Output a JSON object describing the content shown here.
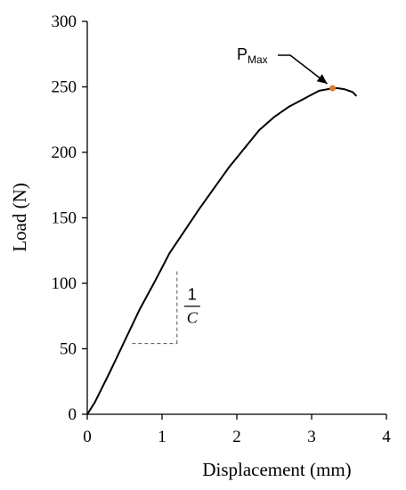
{
  "chart_data": {
    "type": "line",
    "title": "",
    "xlabel": "Displacement (mm)",
    "ylabel": "Load (N)",
    "xlim": [
      0,
      4
    ],
    "ylim": [
      0,
      300
    ],
    "x_ticks": [
      0,
      1,
      2,
      3,
      4
    ],
    "y_ticks": [
      0,
      50,
      100,
      150,
      200,
      250,
      300
    ],
    "grid": false,
    "series": [
      {
        "x": [
          0,
          0.1,
          0.3,
          0.5,
          0.7,
          0.9,
          1.1,
          1.3,
          1.5,
          1.7,
          1.9,
          2.1,
          2.3,
          2.5,
          2.7,
          2.9,
          3.0,
          3.1,
          3.2,
          3.28,
          3.35,
          3.45,
          3.55,
          3.6
        ],
        "y": [
          0,
          9,
          32,
          56,
          80,
          101,
          123,
          140,
          157,
          173,
          189,
          203,
          217,
          227,
          235,
          241,
          244,
          247,
          248,
          249,
          249,
          248,
          246,
          243
        ]
      }
    ],
    "annotations": {
      "peak_label": "P",
      "peak_subscript": "Max",
      "peak": {
        "x": 3.28,
        "y": 249
      },
      "slope_numerator": "1",
      "slope_denominator": "C",
      "slope_triangle": {
        "x0": 0.6,
        "x1": 1.2,
        "y0": 54,
        "y1": 111
      }
    },
    "colors": {
      "line": "#000000",
      "peak_marker": "#e07b2a",
      "triangle": "#555555"
    }
  }
}
